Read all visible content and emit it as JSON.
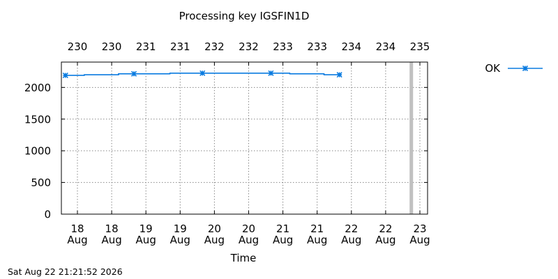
{
  "chart_data": {
    "type": "line",
    "title": "Processing key IGSFIN1D",
    "xlabel": "Time",
    "ylabel": "",
    "ylim": [
      0,
      2400
    ],
    "yticks": [
      0,
      500,
      1000,
      1500,
      2000
    ],
    "grid": true,
    "legend_position": "top-right",
    "x_bottom_ticks": [
      {
        "day": "18",
        "month": "Aug"
      },
      {
        "day": "18",
        "month": "Aug"
      },
      {
        "day": "19",
        "month": "Aug"
      },
      {
        "day": "19",
        "month": "Aug"
      },
      {
        "day": "20",
        "month": "Aug"
      },
      {
        "day": "20",
        "month": "Aug"
      },
      {
        "day": "21",
        "month": "Aug"
      },
      {
        "day": "21",
        "month": "Aug"
      },
      {
        "day": "22",
        "month": "Aug"
      },
      {
        "day": "22",
        "month": "Aug"
      },
      {
        "day": "23",
        "month": "Aug"
      }
    ],
    "x_top_ticks": [
      "230",
      "230",
      "231",
      "231",
      "232",
      "232",
      "233",
      "233",
      "234",
      "234",
      "235"
    ],
    "now_marker_x_tick": 9.75,
    "series": [
      {
        "name": "OK",
        "color": "#0a7be0",
        "step": true,
        "points": [
          {
            "x": -0.35,
            "y": 2190,
            "marker": true
          },
          {
            "x": 0.2,
            "y": 2200,
            "marker": false
          },
          {
            "x": 1.2,
            "y": 2215,
            "marker": false
          },
          {
            "x": 1.65,
            "y": 2215,
            "marker": true
          },
          {
            "x": 2.7,
            "y": 2225,
            "marker": false
          },
          {
            "x": 3.65,
            "y": 2225,
            "marker": true
          },
          {
            "x": 5.65,
            "y": 2225,
            "marker": true
          },
          {
            "x": 6.2,
            "y": 2215,
            "marker": false
          },
          {
            "x": 7.2,
            "y": 2200,
            "marker": false
          },
          {
            "x": 7.65,
            "y": 2200,
            "marker": true
          }
        ]
      }
    ]
  },
  "footer": {
    "timestamp": "Sat Aug 22 21:21:52 2026"
  },
  "colors": {
    "series": "#0a7be0",
    "grid": "#888888",
    "now_marker": "#c0c0c0"
  }
}
